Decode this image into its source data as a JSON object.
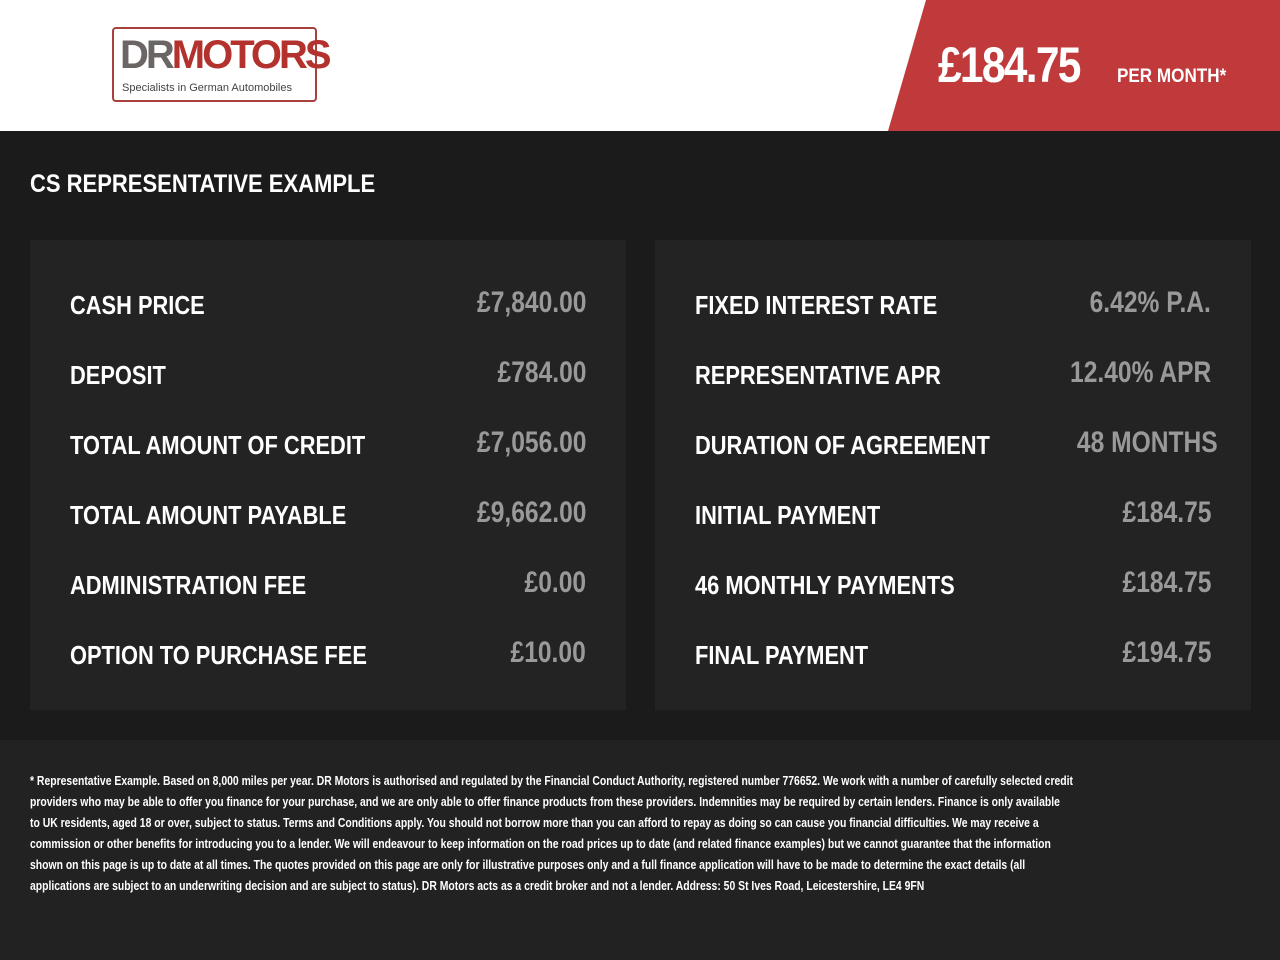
{
  "header": {
    "logo": {
      "brand_dr": "DR",
      "brand_motors": "MOTORS",
      "tagline": "Specialists in German Automobiles"
    },
    "monthly_price": "£184.75",
    "per_month_label": "PER MONTH*",
    "accent_color": "#c0393b"
  },
  "title": "CS REPRESENTATIVE EXAMPLE",
  "left_panel": [
    {
      "label": "CASH PRICE",
      "value": "£7,840.00"
    },
    {
      "label": "DEPOSIT",
      "value": "£784.00"
    },
    {
      "label": "TOTAL AMOUNT OF CREDIT",
      "value": "£7,056.00"
    },
    {
      "label": "TOTAL AMOUNT PAYABLE",
      "value": "£9,662.00"
    },
    {
      "label": "ADMINISTRATION FEE",
      "value": "£0.00"
    },
    {
      "label": "OPTION TO PURCHASE FEE",
      "value": "£10.00"
    }
  ],
  "right_panel": [
    {
      "label": "FIXED INTEREST RATE",
      "value": "6.42% P.A."
    },
    {
      "label": "REPRESENTATIVE APR",
      "value": "12.40% APR"
    },
    {
      "label": "DURATION OF AGREEMENT",
      "value": "48 MONTHS"
    },
    {
      "label": "INITIAL PAYMENT",
      "value": "£184.75"
    },
    {
      "label": "46 MONTHLY PAYMENTS",
      "value": "£184.75"
    },
    {
      "label": "FINAL PAYMENT",
      "value": "£194.75"
    }
  ],
  "disclaimer_lines": [
    "* Representative Example. Based on 8,000 miles per year. DR Motors is authorised and regulated by the Financial Conduct Authority, registered number 776652. We work with a number of carefully selected credit",
    "providers who may be able to offer you finance for your purchase, and we are only able to offer finance products from these providers. Indemnities may be required by certain lenders. Finance is only available",
    "to UK residents, aged 18 or over, subject to status. Terms and Conditions apply. You should not borrow more than you can afford to repay as doing so can cause you financial difficulties. We may receive a",
    "commission or other benefits for introducing you to a lender. We will endeavour to keep information on the road prices up to date (and related finance examples) but we cannot guarantee that the information",
    "shown on this page is up to date at all times. The quotes provided on this page are only for illustrative purposes only and a full finance application will have to be made to determine the exact details (all",
    "applications are subject to an underwriting decision and are subject to status). DR Motors acts as a credit broker and not a lender. Address: 50 St Ives Road, Leicestershire, LE4 9FN"
  ]
}
